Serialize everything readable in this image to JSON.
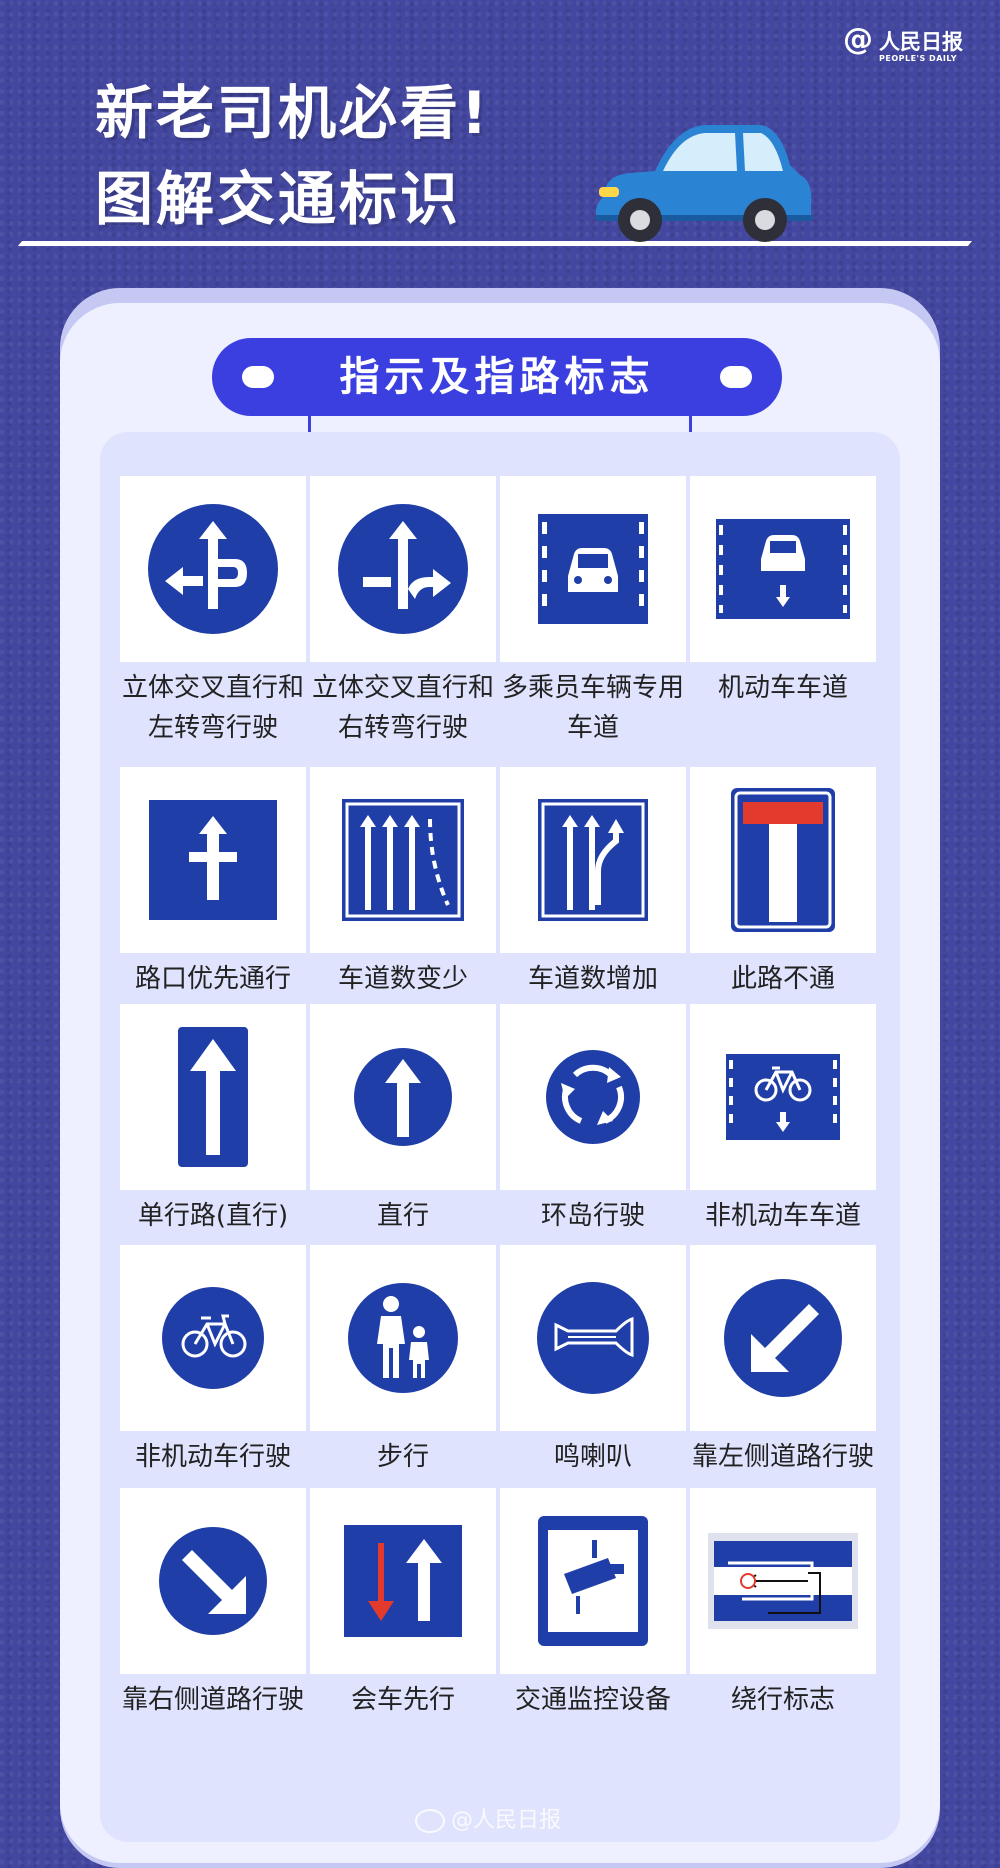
{
  "header": {
    "logo_at": "@",
    "logo_cn": "人民日报",
    "logo_en": "PEOPLE'S DAILY",
    "title_line1": "新老司机必看!",
    "title_line2": "图解交通标识"
  },
  "section": {
    "title": "指示及指路标志"
  },
  "colors": {
    "background": "#4347a0",
    "panel": "#eef0ff",
    "inner": "#dfe3fd",
    "sign_blue": "#1f3ea8",
    "section_blue": "#3b3fe0",
    "sign_red": "#e23a2c"
  },
  "signs": [
    {
      "label": "立体交叉直行和左转弯行驶",
      "icon": "cross-straight-left-icon"
    },
    {
      "label": "立体交叉直行和右转弯行驶",
      "icon": "cross-straight-right-icon"
    },
    {
      "label": "多乘员车辆专用车道",
      "icon": "hov-lane-icon"
    },
    {
      "label": "机动车车道",
      "icon": "motor-lane-icon"
    },
    {
      "label": "路口优先通行",
      "icon": "priority-junction-icon"
    },
    {
      "label": "车道数变少",
      "icon": "lanes-reduce-icon"
    },
    {
      "label": "车道数增加",
      "icon": "lanes-increase-icon"
    },
    {
      "label": "此路不通",
      "icon": "dead-end-icon"
    },
    {
      "label": "单行路(直行)",
      "icon": "one-way-icon"
    },
    {
      "label": "直行",
      "icon": "straight-icon"
    },
    {
      "label": "环岛行驶",
      "icon": "roundabout-icon"
    },
    {
      "label": "非机动车车道",
      "icon": "bicycle-lane-icon"
    },
    {
      "label": "非机动车行驶",
      "icon": "bicycle-icon"
    },
    {
      "label": "步行",
      "icon": "pedestrian-icon"
    },
    {
      "label": "鸣喇叭",
      "icon": "horn-icon"
    },
    {
      "label": "靠左侧道路行驶",
      "icon": "keep-left-icon"
    },
    {
      "label": "靠右侧道路行驶",
      "icon": "keep-right-icon"
    },
    {
      "label": "会车先行",
      "icon": "priority-oncoming-icon"
    },
    {
      "label": "交通监控设备",
      "icon": "traffic-camera-icon"
    },
    {
      "label": "绕行标志",
      "icon": "detour-icon"
    }
  ],
  "watermark": "@人民日报"
}
